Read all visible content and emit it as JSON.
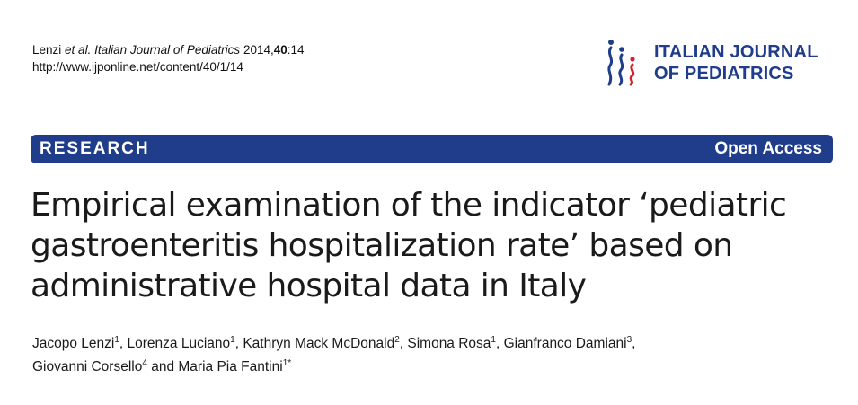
{
  "citation": {
    "authors": "Lenzi",
    "et_al": "et al.",
    "journal": "Italian Journal of Pediatrics",
    "year": "2014,",
    "volume": "40",
    "article": ":14",
    "url": "http://www.ijponline.net/content/40/1/14"
  },
  "logo": {
    "line1": "ITALIAN JOURNAL",
    "line2": "OF PEDIATRICS",
    "colors": {
      "blue": "#1f3d8a",
      "red": "#d2232a"
    }
  },
  "banner": {
    "section": "RESEARCH",
    "access": "Open Access",
    "color": "#1f3d8a"
  },
  "title": {
    "line1": "Empirical examination of the indicator ‘pediatric",
    "line2": "gastroenteritis hospitalization rate’ based on",
    "line3": "administrative hospital data in Italy"
  },
  "authors": [
    {
      "name": "Jacopo Lenzi",
      "sup": "1",
      "sep": ", "
    },
    {
      "name": "Lorenza Luciano",
      "sup": "1",
      "sep": ", "
    },
    {
      "name": "Kathryn Mack McDonald",
      "sup": "2",
      "sep": ", "
    },
    {
      "name": "Simona Rosa",
      "sup": "1",
      "sep": ", "
    },
    {
      "name": "Gianfranco Damiani",
      "sup": "3",
      "sep": ","
    },
    {
      "name": "Giovanni Corsello",
      "sup": "4",
      "sep": " and "
    },
    {
      "name": "Maria Pia Fantini",
      "sup": "1*",
      "sep": ""
    }
  ]
}
